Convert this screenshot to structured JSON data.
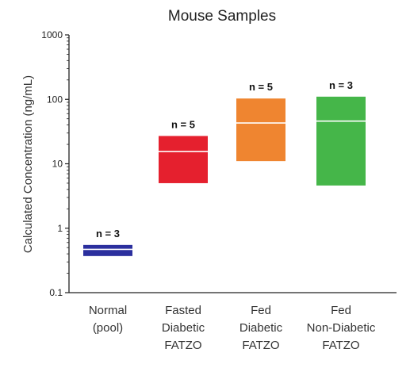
{
  "chart_data": {
    "type": "floating-bar",
    "title": "Mouse Samples",
    "xlabel": "",
    "ylabel": "Calculated Concentration (ng/mL)",
    "yscale": "log",
    "ylim": [
      0.1,
      1000
    ],
    "yticks": [
      "0.1",
      "1",
      "10",
      "100",
      "1000"
    ],
    "grid": false,
    "legend": "none",
    "categories": [
      [
        "Normal",
        "(pool)"
      ],
      [
        "Fasted",
        "Diabetic",
        "FATZO"
      ],
      [
        "Fed",
        "Diabetic",
        "FATZO"
      ],
      [
        "Fed",
        "Non-Diabetic",
        "FATZO"
      ]
    ],
    "series": [
      {
        "low": [
          0.37,
          5.0,
          11.0,
          4.6
        ],
        "median": [
          0.47,
          15.5,
          43.0,
          46.0
        ],
        "high": [
          0.55,
          27.0,
          103.0,
          110.0
        ],
        "n_labels": [
          "n = 3",
          "n = 5",
          "n = 5",
          "n = 3"
        ],
        "colors": [
          "#2b2f9e",
          "#e5202e",
          "#ef8530",
          "#45b649"
        ]
      }
    ],
    "median_color": "#ffffff"
  }
}
